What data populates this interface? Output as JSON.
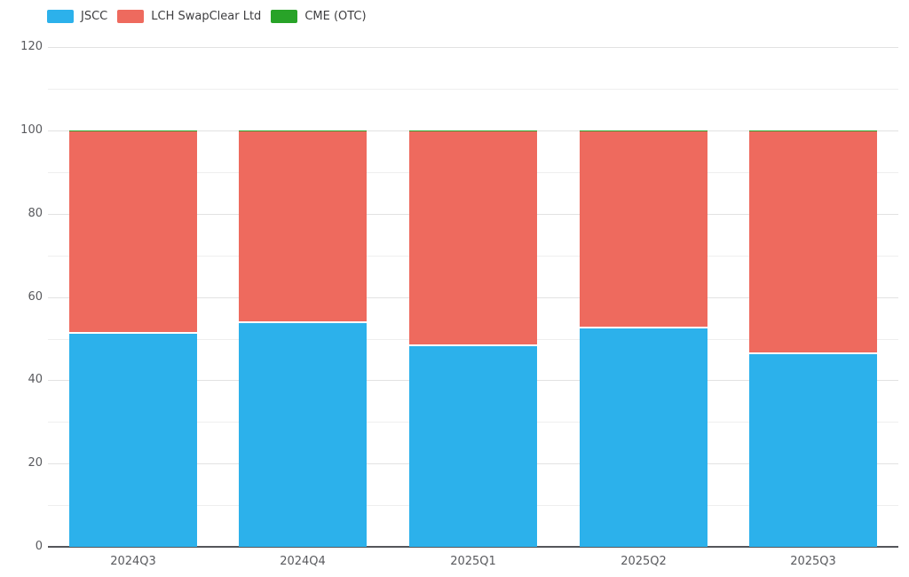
{
  "chart_data": {
    "type": "bar",
    "stacked": true,
    "stack_total": 100,
    "title": "",
    "xlabel": "",
    "ylabel": "",
    "categories": [
      "2024Q3",
      "2024Q4",
      "2025Q1",
      "2025Q2",
      "2025Q3"
    ],
    "series": [
      {
        "name": "JSCC",
        "color": "#2cb1eb",
        "values": [
          51.3,
          54.0,
          48.3,
          52.6,
          46.5
        ]
      },
      {
        "name": "LCH SwapClear Ltd",
        "color": "#ee6a5e",
        "values": [
          48.4,
          45.7,
          51.4,
          47.1,
          53.2
        ]
      },
      {
        "name": "CME (OTC)",
        "color": "#28a328",
        "values": [
          0.3,
          0.3,
          0.3,
          0.3,
          0.3
        ]
      }
    ],
    "ylim": [
      0,
      120
    ],
    "y_tick_step": 10,
    "y_label_step": 20,
    "y_tick_labels": [
      "0",
      "20",
      "40",
      "60",
      "80",
      "100",
      "120"
    ],
    "grid": true,
    "legend_position": "top-left",
    "colors": {
      "grid_major": "#e2e2e2",
      "grid_minor": "#eeeeee",
      "axis_line": "#55565a",
      "axis_text": "#595a5e",
      "legend_text": "#3e3e40",
      "background": "#ffffff"
    }
  }
}
